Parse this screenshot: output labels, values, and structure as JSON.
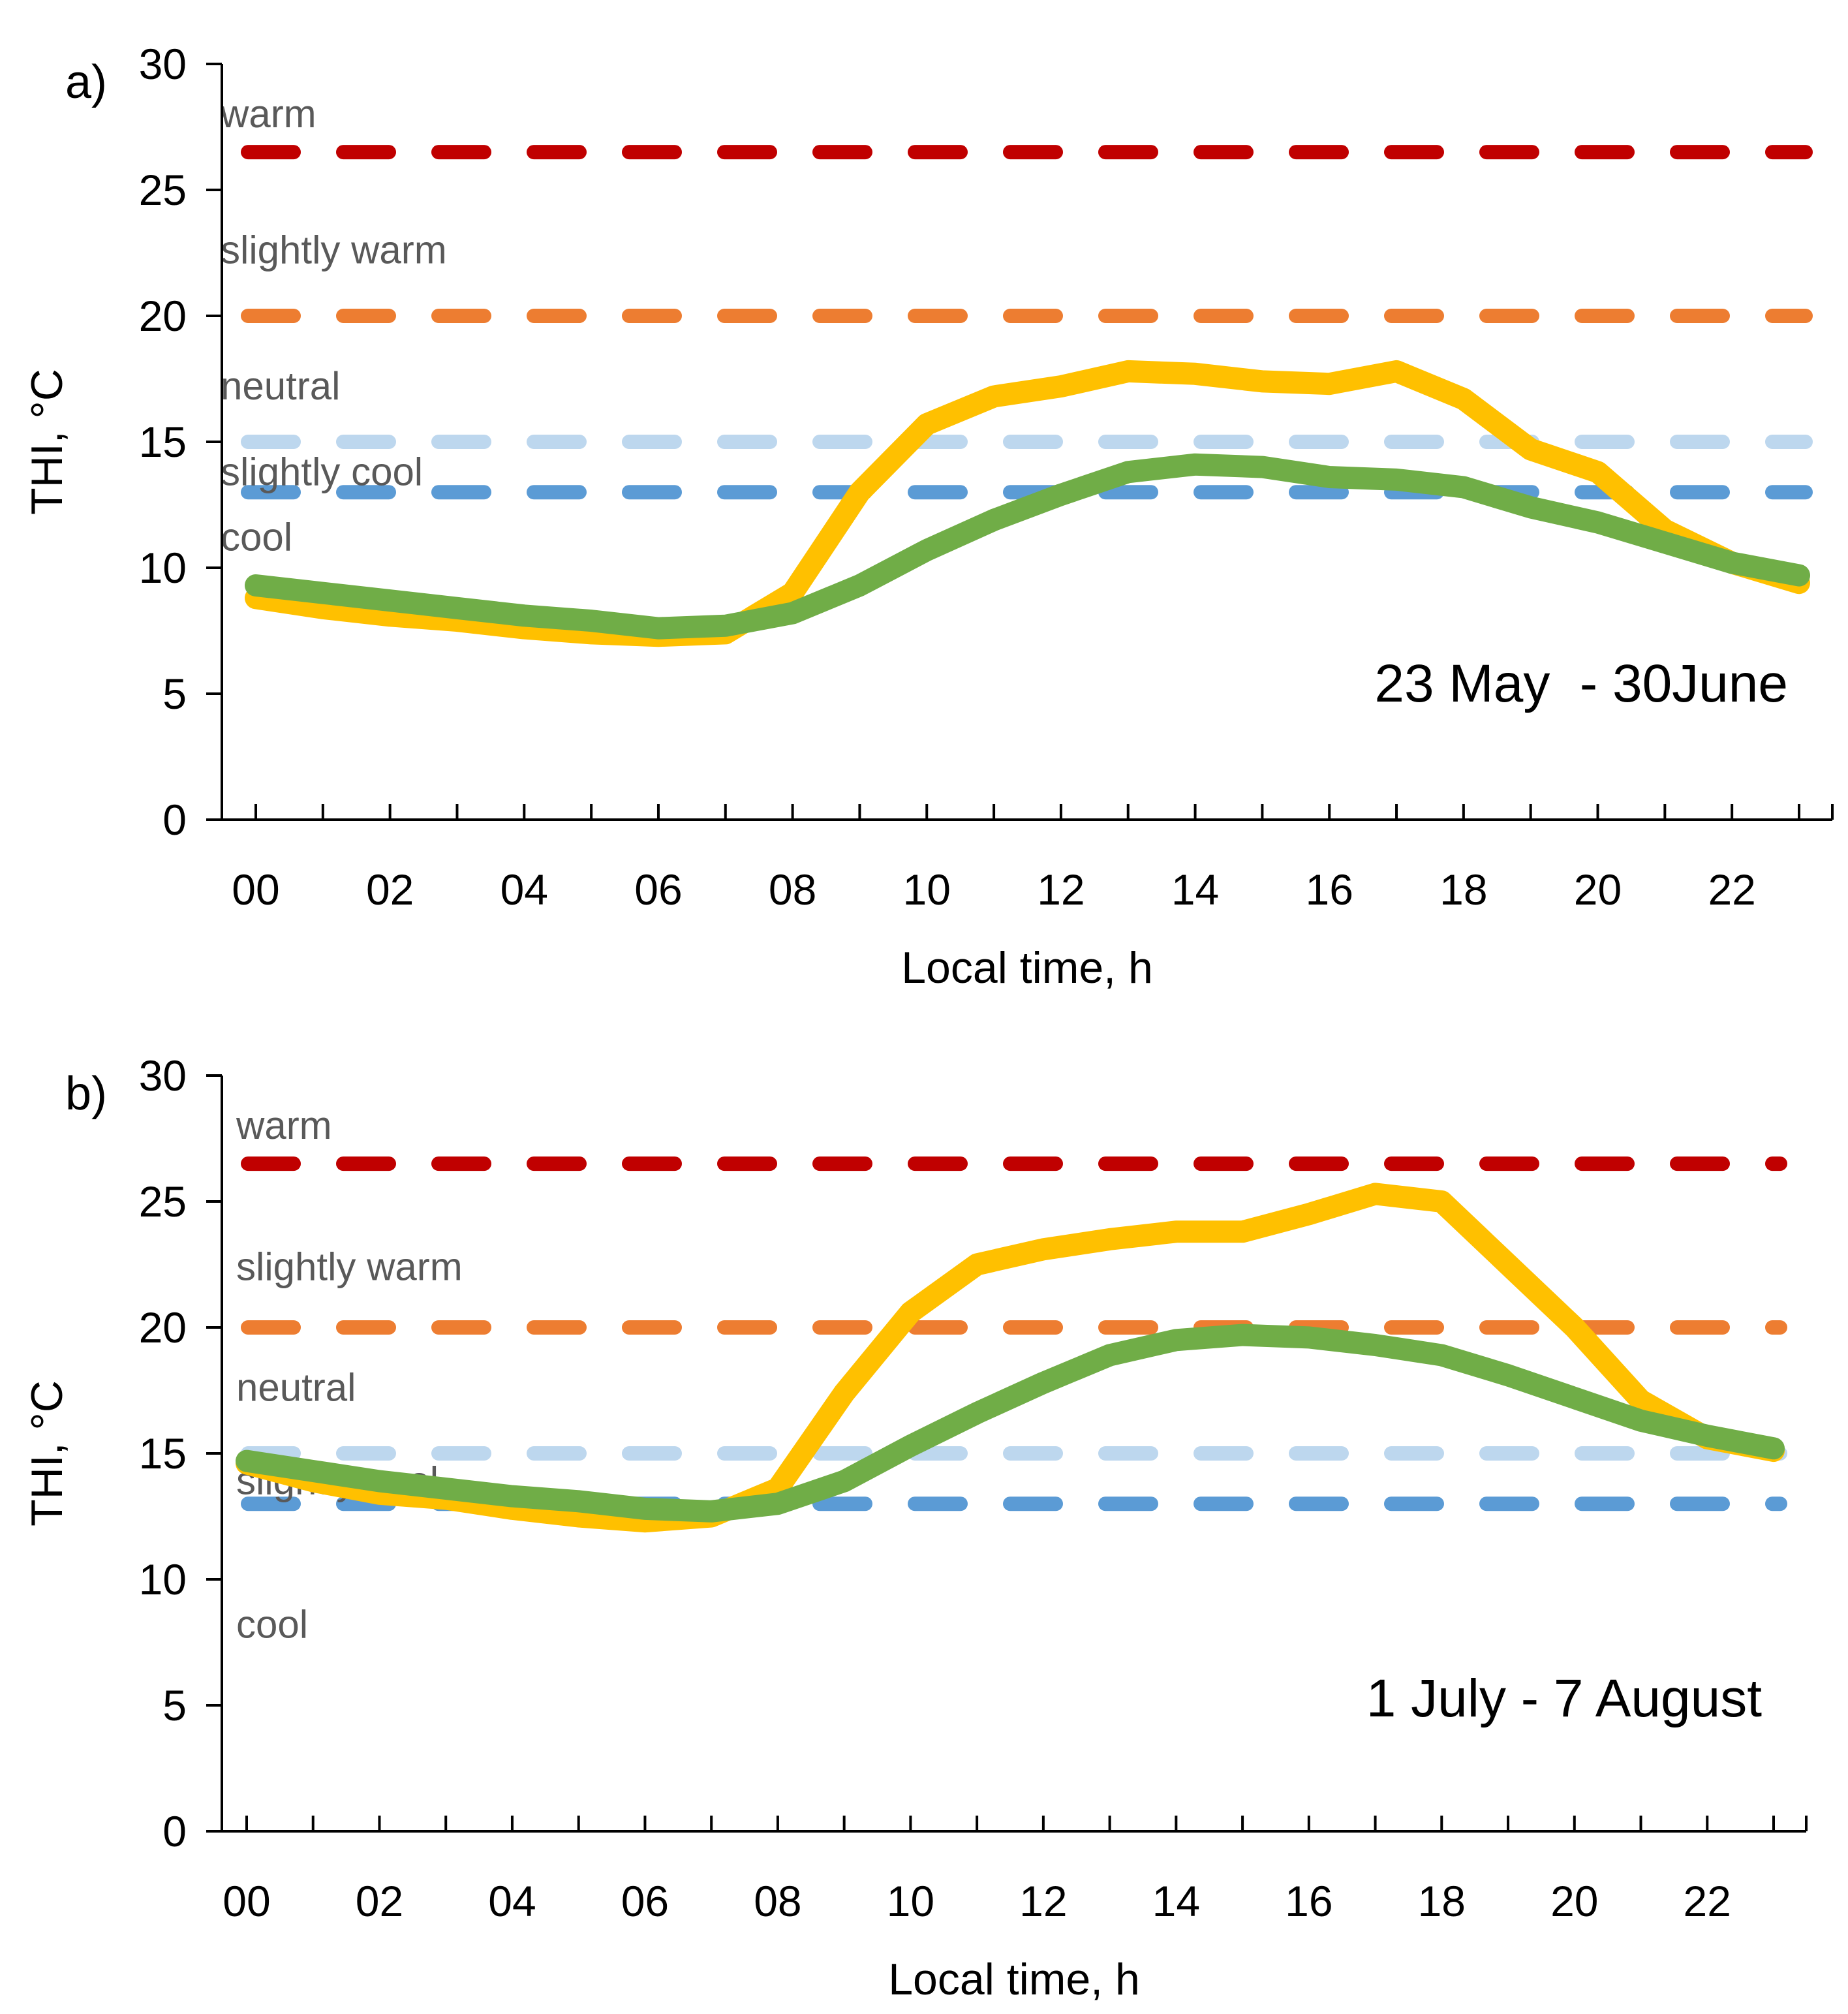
{
  "chart_data": [
    {
      "type": "line",
      "panel_label": "a)",
      "annotation": "23 May  - 30June",
      "xlabel": "Local time, h",
      "ylabel": "THI, °C",
      "ylim": [
        0,
        30
      ],
      "yticks": [
        "0",
        "5",
        "10",
        "15",
        "20",
        "25",
        "30"
      ],
      "x": [
        0,
        1,
        2,
        3,
        4,
        5,
        6,
        7,
        8,
        9,
        10,
        11,
        12,
        13,
        14,
        15,
        16,
        17,
        18,
        19,
        20,
        21,
        22,
        23
      ],
      "xticks": [
        {
          "x": 0,
          "label": "00"
        },
        {
          "x": 2,
          "label": "02"
        },
        {
          "x": 4,
          "label": "04"
        },
        {
          "x": 6,
          "label": "06"
        },
        {
          "x": 8,
          "label": "08"
        },
        {
          "x": 10,
          "label": "10"
        },
        {
          "x": 12,
          "label": "12"
        },
        {
          "x": 14,
          "label": "14"
        },
        {
          "x": 16,
          "label": "16"
        },
        {
          "x": 18,
          "label": "18"
        },
        {
          "x": 20,
          "label": "20"
        },
        {
          "x": 22,
          "label": "22"
        }
      ],
      "series": [
        {
          "color": "#FFC000",
          "values": [
            8.8,
            8.4,
            8.1,
            7.9,
            7.6,
            7.4,
            7.3,
            7.4,
            9.0,
            13.0,
            15.7,
            16.8,
            17.2,
            17.8,
            17.7,
            17.4,
            17.3,
            17.8,
            16.7,
            14.7,
            13.8,
            11.5,
            10.2,
            9.4
          ]
        },
        {
          "color": "#70AD47",
          "values": [
            9.3,
            9.0,
            8.7,
            8.4,
            8.1,
            7.9,
            7.6,
            7.7,
            8.2,
            9.3,
            10.7,
            11.9,
            12.9,
            13.8,
            14.1,
            14.0,
            13.6,
            13.5,
            13.2,
            12.4,
            11.8,
            11.0,
            10.2,
            9.7
          ]
        }
      ],
      "thresholds": [
        {
          "value": 26.5,
          "color": "#C00000"
        },
        {
          "value": 20,
          "color": "#ED7D31"
        },
        {
          "value": 15,
          "color": "#BDD7EE"
        },
        {
          "value": 13,
          "color": "#5B9BD5"
        }
      ],
      "zone_labels": [
        {
          "text": "warm",
          "y": 28.0
        },
        {
          "text": "slightly warm",
          "y": 22.6
        },
        {
          "text": "neutral",
          "y": 17.2
        },
        {
          "text": "slightly cool",
          "y": 13.8
        },
        {
          "text": "cool",
          "y": 11.2
        }
      ]
    },
    {
      "type": "line",
      "panel_label": "b)",
      "annotation": "1 July - 7 August",
      "xlabel": "Local time, h",
      "ylabel": "THI, °C",
      "ylim": [
        0,
        30
      ],
      "yticks": [
        "0",
        "5",
        "10",
        "15",
        "20",
        "25",
        "30"
      ],
      "x": [
        0,
        1,
        2,
        3,
        4,
        5,
        6,
        7,
        8,
        9,
        10,
        11,
        12,
        13,
        14,
        15,
        16,
        17,
        18,
        19,
        20,
        21,
        22,
        23
      ],
      "xticks": [
        {
          "x": 0,
          "label": "00"
        },
        {
          "x": 2,
          "label": "02"
        },
        {
          "x": 4,
          "label": "04"
        },
        {
          "x": 6,
          "label": "06"
        },
        {
          "x": 8,
          "label": "08"
        },
        {
          "x": 10,
          "label": "10"
        },
        {
          "x": 12,
          "label": "12"
        },
        {
          "x": 14,
          "label": "14"
        },
        {
          "x": 16,
          "label": "16"
        },
        {
          "x": 18,
          "label": "18"
        },
        {
          "x": 20,
          "label": "20"
        },
        {
          "x": 22,
          "label": "22"
        }
      ],
      "series": [
        {
          "color": "#FFC000",
          "values": [
            14.6,
            13.9,
            13.4,
            13.2,
            12.8,
            12.5,
            12.3,
            12.5,
            13.6,
            17.4,
            20.6,
            22.5,
            23.1,
            23.5,
            23.8,
            23.8,
            24.5,
            25.3,
            25.0,
            22.5,
            20.0,
            17.1,
            15.6,
            15.1
          ]
        },
        {
          "color": "#70AD47",
          "values": [
            14.7,
            14.3,
            13.9,
            13.6,
            13.3,
            13.1,
            12.8,
            12.7,
            13.0,
            13.9,
            15.3,
            16.6,
            17.8,
            18.9,
            19.5,
            19.7,
            19.6,
            19.3,
            18.9,
            18.1,
            17.2,
            16.3,
            15.7,
            15.2
          ]
        }
      ],
      "thresholds": [
        {
          "value": 26.5,
          "color": "#C00000"
        },
        {
          "value": 20,
          "color": "#ED7D31"
        },
        {
          "value": 15,
          "color": "#BDD7EE"
        },
        {
          "value": 13,
          "color": "#5B9BD5"
        }
      ],
      "zone_labels": [
        {
          "text": "warm",
          "y": 28.0
        },
        {
          "text": "slightly warm",
          "y": 22.4
        },
        {
          "text": "neutral",
          "y": 17.6
        },
        {
          "text": "slightly cool",
          "y": 13.9
        },
        {
          "text": "cool",
          "y": 8.2
        }
      ]
    }
  ]
}
